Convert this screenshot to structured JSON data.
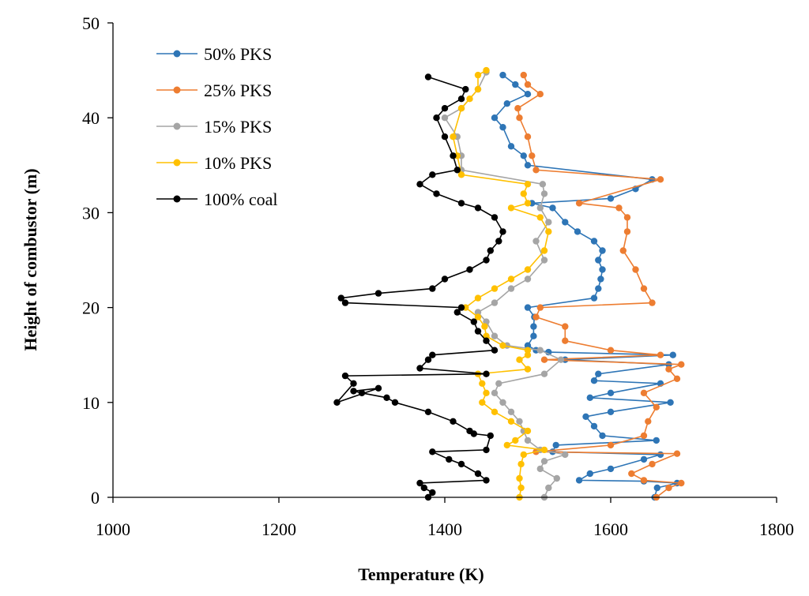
{
  "chart_data": {
    "type": "scatter",
    "title": "",
    "xlabel": "Temperature (K)",
    "ylabel": "Height of combustor (m)",
    "xlim": [
      1000,
      1800
    ],
    "ylim": [
      0,
      50
    ],
    "xticks": [
      "1000",
      "1200",
      "1400",
      "1600",
      "1800"
    ],
    "yticks": [
      "0",
      "10",
      "20",
      "30",
      "40",
      "50"
    ],
    "xtick_values": [
      1000,
      1200,
      1400,
      1600,
      1800
    ],
    "ytick_values": [
      0,
      10,
      20,
      30,
      40,
      50
    ],
    "grid": false,
    "legend_position": "top-left",
    "series": [
      {
        "name": "50% PKS",
        "color": "#2E75B6",
        "points": [
          [
            1653,
            0
          ],
          [
            1656,
            1
          ],
          [
            1680,
            1.5
          ],
          [
            1640,
            1.7
          ],
          [
            1562,
            1.8
          ],
          [
            1575,
            2.5
          ],
          [
            1600,
            3
          ],
          [
            1640,
            4
          ],
          [
            1660,
            4.5
          ],
          [
            1530,
            4.8
          ],
          [
            1534,
            5.5
          ],
          [
            1655,
            6
          ],
          [
            1590,
            6.5
          ],
          [
            1580,
            7.5
          ],
          [
            1570,
            8.5
          ],
          [
            1600,
            9
          ],
          [
            1672,
            10
          ],
          [
            1575,
            10.5
          ],
          [
            1600,
            11
          ],
          [
            1660,
            12
          ],
          [
            1580,
            12.3
          ],
          [
            1585,
            13
          ],
          [
            1670,
            14
          ],
          [
            1545,
            14.5
          ],
          [
            1675,
            15
          ],
          [
            1525,
            15.3
          ],
          [
            1510,
            15.5
          ],
          [
            1500,
            16
          ],
          [
            1507,
            17
          ],
          [
            1507,
            18
          ],
          [
            1508,
            19
          ],
          [
            1500,
            20
          ],
          [
            1580,
            21
          ],
          [
            1585,
            22
          ],
          [
            1588,
            23
          ],
          [
            1590,
            24
          ],
          [
            1585,
            25
          ],
          [
            1590,
            26
          ],
          [
            1580,
            27
          ],
          [
            1560,
            28
          ],
          [
            1545,
            29
          ],
          [
            1530,
            30.5
          ],
          [
            1505,
            31
          ],
          [
            1600,
            31.5
          ],
          [
            1630,
            32.5
          ],
          [
            1650,
            33.5
          ],
          [
            1500,
            35
          ],
          [
            1495,
            36
          ],
          [
            1480,
            37
          ],
          [
            1470,
            39
          ],
          [
            1460,
            40
          ],
          [
            1475,
            41.5
          ],
          [
            1500,
            42.5
          ],
          [
            1485,
            43.5
          ],
          [
            1470,
            44.5
          ]
        ]
      },
      {
        "name": "25% PKS",
        "color": "#ED7D31",
        "points": [
          [
            1655,
            0
          ],
          [
            1670,
            1
          ],
          [
            1685,
            1.5
          ],
          [
            1640,
            1.8
          ],
          [
            1625,
            2.5
          ],
          [
            1650,
            3.5
          ],
          [
            1680,
            4.6
          ],
          [
            1510,
            4.8
          ],
          [
            1600,
            5.5
          ],
          [
            1640,
            6.5
          ],
          [
            1645,
            8
          ],
          [
            1655,
            9.5
          ],
          [
            1640,
            11
          ],
          [
            1680,
            12.5
          ],
          [
            1670,
            13.5
          ],
          [
            1685,
            14
          ],
          [
            1520,
            14.5
          ],
          [
            1660,
            15
          ],
          [
            1600,
            15.5
          ],
          [
            1545,
            16.5
          ],
          [
            1545,
            18
          ],
          [
            1510,
            19
          ],
          [
            1515,
            20
          ],
          [
            1650,
            20.5
          ],
          [
            1640,
            22
          ],
          [
            1630,
            24
          ],
          [
            1615,
            26
          ],
          [
            1620,
            28
          ],
          [
            1620,
            29.5
          ],
          [
            1610,
            30.5
          ],
          [
            1562,
            31
          ],
          [
            1660,
            33.5
          ],
          [
            1510,
            34.5
          ],
          [
            1505,
            36
          ],
          [
            1500,
            38
          ],
          [
            1490,
            40
          ],
          [
            1488,
            41
          ],
          [
            1515,
            42.5
          ],
          [
            1500,
            43.5
          ],
          [
            1495,
            44.5
          ]
        ]
      },
      {
        "name": "15% PKS",
        "color": "#A5A5A5",
        "points": [
          [
            1520,
            0
          ],
          [
            1525,
            1
          ],
          [
            1535,
            2
          ],
          [
            1515,
            3
          ],
          [
            1520,
            3.8
          ],
          [
            1545,
            4.5
          ],
          [
            1515,
            5
          ],
          [
            1500,
            6
          ],
          [
            1495,
            7
          ],
          [
            1490,
            8
          ],
          [
            1480,
            9
          ],
          [
            1470,
            10
          ],
          [
            1460,
            11
          ],
          [
            1465,
            12
          ],
          [
            1520,
            13
          ],
          [
            1540,
            14.5
          ],
          [
            1515,
            15.5
          ],
          [
            1475,
            16
          ],
          [
            1460,
            17
          ],
          [
            1450,
            18.5
          ],
          [
            1440,
            19.5
          ],
          [
            1460,
            20.5
          ],
          [
            1480,
            22
          ],
          [
            1500,
            23
          ],
          [
            1520,
            25
          ],
          [
            1510,
            27
          ],
          [
            1525,
            29
          ],
          [
            1515,
            30.5
          ],
          [
            1520,
            32
          ],
          [
            1518,
            33
          ],
          [
            1420,
            34.5
          ],
          [
            1420,
            36
          ],
          [
            1415,
            38
          ],
          [
            1400,
            40
          ],
          [
            1420,
            41
          ],
          [
            1440,
            43
          ],
          [
            1450,
            44.8
          ]
        ]
      },
      {
        "name": "10% PKS",
        "color": "#FFC000",
        "points": [
          [
            1490,
            0
          ],
          [
            1492,
            1
          ],
          [
            1490,
            2
          ],
          [
            1492,
            3.5
          ],
          [
            1495,
            4.5
          ],
          [
            1520,
            5
          ],
          [
            1475,
            5.5
          ],
          [
            1485,
            6
          ],
          [
            1500,
            7
          ],
          [
            1480,
            8
          ],
          [
            1460,
            9
          ],
          [
            1445,
            10
          ],
          [
            1450,
            11
          ],
          [
            1445,
            12
          ],
          [
            1440,
            13
          ],
          [
            1500,
            13.5
          ],
          [
            1490,
            14.5
          ],
          [
            1500,
            15
          ],
          [
            1500,
            15.5
          ],
          [
            1470,
            16
          ],
          [
            1450,
            17
          ],
          [
            1448,
            18
          ],
          [
            1440,
            19
          ],
          [
            1425,
            20
          ],
          [
            1440,
            21
          ],
          [
            1460,
            22
          ],
          [
            1480,
            23
          ],
          [
            1500,
            24
          ],
          [
            1520,
            26
          ],
          [
            1525,
            28
          ],
          [
            1515,
            29.5
          ],
          [
            1480,
            30.5
          ],
          [
            1500,
            31
          ],
          [
            1495,
            32
          ],
          [
            1500,
            33
          ],
          [
            1420,
            34
          ],
          [
            1415,
            36
          ],
          [
            1410,
            38
          ],
          [
            1420,
            41
          ],
          [
            1430,
            42
          ],
          [
            1440,
            43
          ],
          [
            1440,
            44.5
          ],
          [
            1450,
            45
          ]
        ]
      },
      {
        "name": "100% coal",
        "color": "#000000",
        "points": [
          [
            1380,
            0
          ],
          [
            1385,
            0.5
          ],
          [
            1375,
            1
          ],
          [
            1370,
            1.5
          ],
          [
            1450,
            1.8
          ],
          [
            1440,
            2.5
          ],
          [
            1420,
            3.5
          ],
          [
            1405,
            4
          ],
          [
            1385,
            4.8
          ],
          [
            1450,
            5
          ],
          [
            1455,
            6.5
          ],
          [
            1435,
            6.7
          ],
          [
            1430,
            7
          ],
          [
            1410,
            8
          ],
          [
            1380,
            9
          ],
          [
            1340,
            10
          ],
          [
            1330,
            10.5
          ],
          [
            1300,
            11
          ],
          [
            1290,
            11.2
          ],
          [
            1320,
            11.5
          ],
          [
            1270,
            10
          ],
          [
            1290,
            12
          ],
          [
            1280,
            12.8
          ],
          [
            1450,
            13
          ],
          [
            1370,
            13.6
          ],
          [
            1380,
            14.5
          ],
          [
            1385,
            15
          ],
          [
            1460,
            15.5
          ],
          [
            1450,
            16.5
          ],
          [
            1440,
            17.5
          ],
          [
            1435,
            18.5
          ],
          [
            1415,
            19.5
          ],
          [
            1420,
            20
          ],
          [
            1280,
            20.5
          ],
          [
            1275,
            21
          ],
          [
            1320,
            21.5
          ],
          [
            1385,
            22
          ],
          [
            1400,
            23
          ],
          [
            1430,
            24
          ],
          [
            1450,
            25
          ],
          [
            1455,
            26
          ],
          [
            1465,
            27
          ],
          [
            1470,
            28
          ],
          [
            1460,
            29.5
          ],
          [
            1440,
            30.5
          ],
          [
            1420,
            31
          ],
          [
            1390,
            32
          ],
          [
            1370,
            33
          ],
          [
            1385,
            34
          ],
          [
            1415,
            34.5
          ],
          [
            1410,
            36
          ],
          [
            1400,
            38
          ],
          [
            1390,
            40
          ],
          [
            1400,
            41
          ],
          [
            1420,
            42
          ],
          [
            1425,
            43
          ],
          [
            1380,
            44.3
          ]
        ]
      }
    ]
  }
}
